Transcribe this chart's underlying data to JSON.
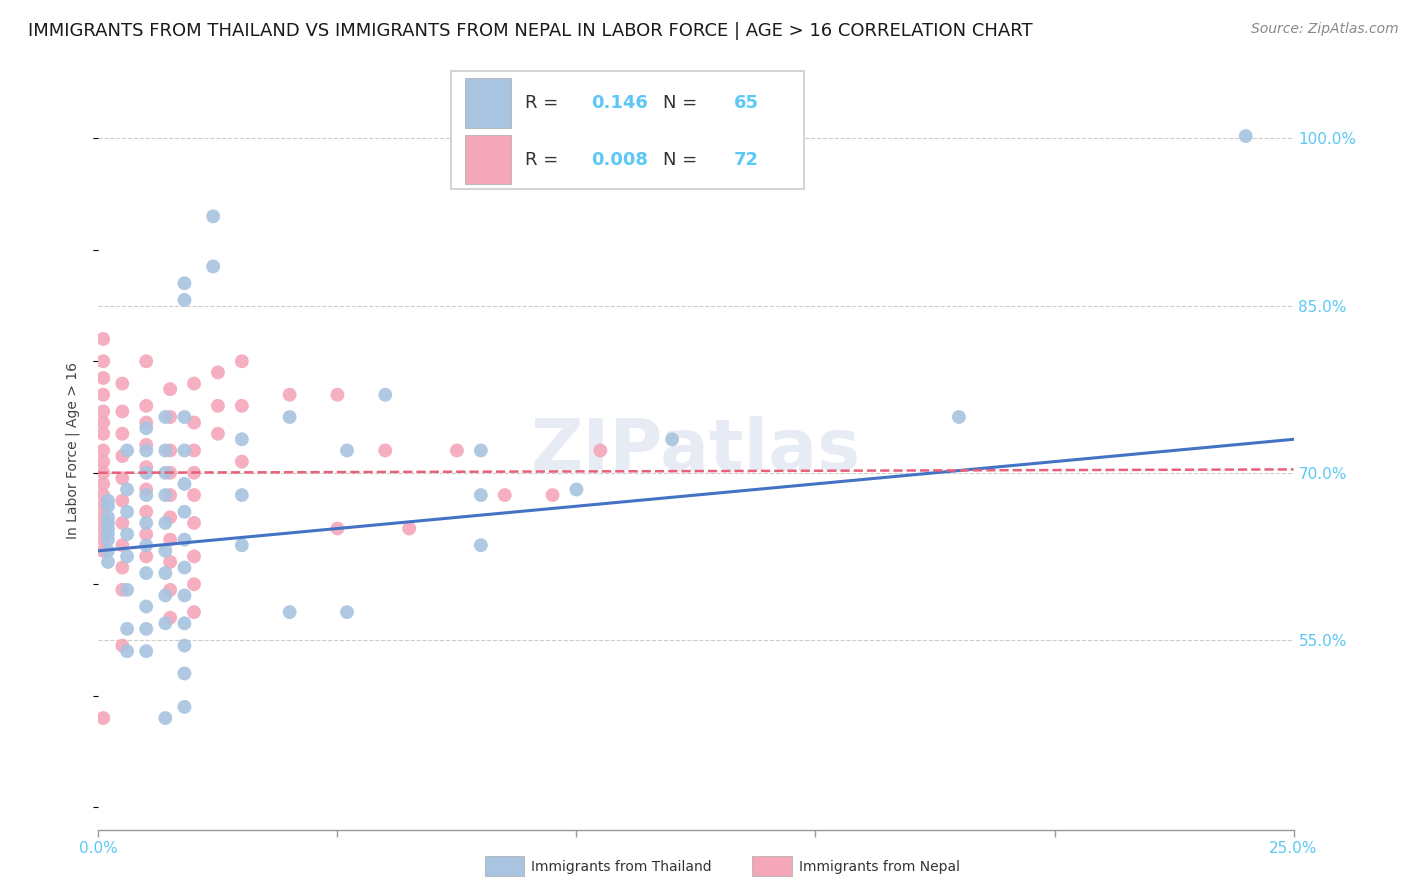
{
  "title": "IMMIGRANTS FROM THAILAND VS IMMIGRANTS FROM NEPAL IN LABOR FORCE | AGE > 16 CORRELATION CHART",
  "source": "Source: ZipAtlas.com",
  "ylabel": "In Labor Force | Age > 16",
  "xlim": [
    0.0,
    0.25
  ],
  "ylim": [
    0.38,
    1.06
  ],
  "xticks": [
    0.0,
    0.05,
    0.1,
    0.15,
    0.2,
    0.25
  ],
  "xticklabels": [
    "0.0%",
    "",
    "",
    "",
    "",
    "25.0%"
  ],
  "ytick_positions": [
    0.55,
    0.7,
    0.85,
    1.0
  ],
  "yticklabels": [
    "55.0%",
    "70.0%",
    "85.0%",
    "100.0%"
  ],
  "watermark": "ZIPatlas",
  "thailand_R": "0.146",
  "thailand_N": "65",
  "nepal_R": "0.008",
  "nepal_N": "72",
  "thailand_color": "#a8c4e0",
  "nepal_color": "#f4a7b9",
  "thailand_line_color": "#4472c4",
  "nepal_line_color": "#e8607a",
  "tick_color": "#5bc8f5",
  "thailand_scatter": [
    [
      0.002,
      0.67
    ],
    [
      0.002,
      0.65
    ],
    [
      0.002,
      0.645
    ],
    [
      0.002,
      0.66
    ],
    [
      0.002,
      0.675
    ],
    [
      0.002,
      0.655
    ],
    [
      0.002,
      0.64
    ],
    [
      0.002,
      0.63
    ],
    [
      0.002,
      0.62
    ],
    [
      0.006,
      0.72
    ],
    [
      0.006,
      0.685
    ],
    [
      0.006,
      0.665
    ],
    [
      0.006,
      0.645
    ],
    [
      0.006,
      0.625
    ],
    [
      0.006,
      0.595
    ],
    [
      0.006,
      0.56
    ],
    [
      0.006,
      0.54
    ],
    [
      0.01,
      0.74
    ],
    [
      0.01,
      0.72
    ],
    [
      0.01,
      0.7
    ],
    [
      0.01,
      0.68
    ],
    [
      0.01,
      0.655
    ],
    [
      0.01,
      0.635
    ],
    [
      0.01,
      0.61
    ],
    [
      0.01,
      0.58
    ],
    [
      0.01,
      0.56
    ],
    [
      0.01,
      0.54
    ],
    [
      0.014,
      0.75
    ],
    [
      0.014,
      0.72
    ],
    [
      0.014,
      0.7
    ],
    [
      0.014,
      0.68
    ],
    [
      0.014,
      0.655
    ],
    [
      0.014,
      0.63
    ],
    [
      0.014,
      0.61
    ],
    [
      0.014,
      0.59
    ],
    [
      0.014,
      0.565
    ],
    [
      0.014,
      0.48
    ],
    [
      0.018,
      0.87
    ],
    [
      0.018,
      0.855
    ],
    [
      0.018,
      0.75
    ],
    [
      0.018,
      0.72
    ],
    [
      0.018,
      0.69
    ],
    [
      0.018,
      0.665
    ],
    [
      0.018,
      0.64
    ],
    [
      0.018,
      0.615
    ],
    [
      0.018,
      0.59
    ],
    [
      0.018,
      0.565
    ],
    [
      0.018,
      0.545
    ],
    [
      0.018,
      0.52
    ],
    [
      0.018,
      0.49
    ],
    [
      0.024,
      0.93
    ],
    [
      0.024,
      0.885
    ],
    [
      0.03,
      0.73
    ],
    [
      0.03,
      0.68
    ],
    [
      0.03,
      0.635
    ],
    [
      0.04,
      0.75
    ],
    [
      0.04,
      0.575
    ],
    [
      0.052,
      0.72
    ],
    [
      0.052,
      0.575
    ],
    [
      0.06,
      0.77
    ],
    [
      0.08,
      0.72
    ],
    [
      0.08,
      0.68
    ],
    [
      0.08,
      0.635
    ],
    [
      0.1,
      0.685
    ],
    [
      0.12,
      0.73
    ],
    [
      0.18,
      0.75
    ],
    [
      0.24,
      1.002
    ]
  ],
  "nepal_scatter": [
    [
      0.001,
      0.82
    ],
    [
      0.001,
      0.8
    ],
    [
      0.001,
      0.785
    ],
    [
      0.001,
      0.77
    ],
    [
      0.001,
      0.755
    ],
    [
      0.001,
      0.745
    ],
    [
      0.001,
      0.735
    ],
    [
      0.001,
      0.72
    ],
    [
      0.001,
      0.71
    ],
    [
      0.001,
      0.7
    ],
    [
      0.001,
      0.69
    ],
    [
      0.001,
      0.68
    ],
    [
      0.001,
      0.67
    ],
    [
      0.001,
      0.66
    ],
    [
      0.001,
      0.65
    ],
    [
      0.001,
      0.64
    ],
    [
      0.001,
      0.63
    ],
    [
      0.001,
      0.48
    ],
    [
      0.005,
      0.78
    ],
    [
      0.005,
      0.755
    ],
    [
      0.005,
      0.735
    ],
    [
      0.005,
      0.715
    ],
    [
      0.005,
      0.695
    ],
    [
      0.005,
      0.675
    ],
    [
      0.005,
      0.655
    ],
    [
      0.005,
      0.635
    ],
    [
      0.005,
      0.615
    ],
    [
      0.005,
      0.595
    ],
    [
      0.005,
      0.545
    ],
    [
      0.01,
      0.8
    ],
    [
      0.01,
      0.76
    ],
    [
      0.01,
      0.745
    ],
    [
      0.01,
      0.725
    ],
    [
      0.01,
      0.705
    ],
    [
      0.01,
      0.685
    ],
    [
      0.01,
      0.665
    ],
    [
      0.01,
      0.645
    ],
    [
      0.01,
      0.625
    ],
    [
      0.015,
      0.775
    ],
    [
      0.015,
      0.75
    ],
    [
      0.015,
      0.72
    ],
    [
      0.015,
      0.7
    ],
    [
      0.015,
      0.68
    ],
    [
      0.015,
      0.66
    ],
    [
      0.015,
      0.64
    ],
    [
      0.015,
      0.62
    ],
    [
      0.015,
      0.595
    ],
    [
      0.015,
      0.57
    ],
    [
      0.02,
      0.78
    ],
    [
      0.02,
      0.745
    ],
    [
      0.02,
      0.72
    ],
    [
      0.02,
      0.7
    ],
    [
      0.02,
      0.68
    ],
    [
      0.02,
      0.655
    ],
    [
      0.02,
      0.625
    ],
    [
      0.02,
      0.6
    ],
    [
      0.02,
      0.575
    ],
    [
      0.025,
      0.79
    ],
    [
      0.025,
      0.76
    ],
    [
      0.025,
      0.735
    ],
    [
      0.03,
      0.8
    ],
    [
      0.03,
      0.76
    ],
    [
      0.03,
      0.71
    ],
    [
      0.04,
      0.77
    ],
    [
      0.05,
      0.77
    ],
    [
      0.05,
      0.65
    ],
    [
      0.06,
      0.72
    ],
    [
      0.065,
      0.65
    ],
    [
      0.075,
      0.72
    ],
    [
      0.085,
      0.68
    ],
    [
      0.095,
      0.68
    ],
    [
      0.105,
      0.72
    ]
  ],
  "thailand_line_x": [
    0.0,
    0.25
  ],
  "thailand_line_y": [
    0.63,
    0.73
  ],
  "nepal_line_x": [
    0.0,
    0.25
  ],
  "nepal_line_y": [
    0.7,
    0.703
  ],
  "background_color": "#ffffff",
  "grid_color": "#cccccc",
  "title_fontsize": 13,
  "source_fontsize": 10,
  "axis_label_fontsize": 10,
  "tick_fontsize": 11
}
